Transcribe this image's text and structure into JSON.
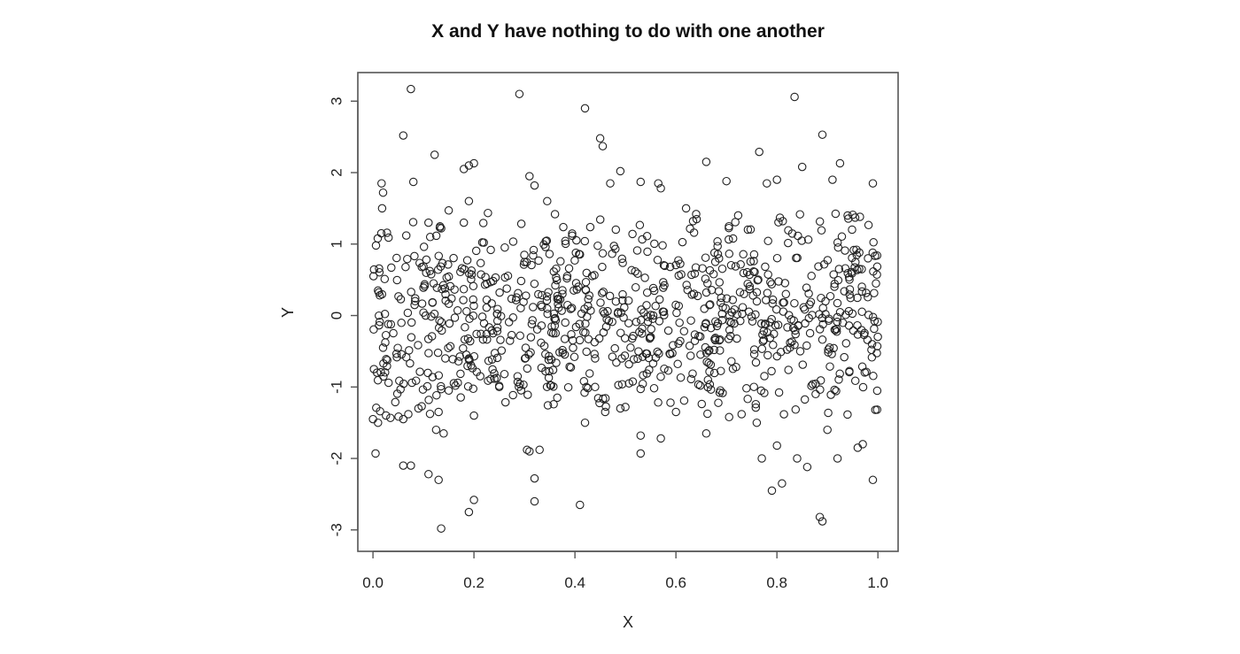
{
  "chart_data": {
    "type": "scatter",
    "title": "X and Y have nothing to do with one another",
    "xlabel": "X",
    "ylabel": "Y",
    "xlim": [
      -0.03,
      1.04
    ],
    "ylim": [
      -3.3,
      3.4
    ],
    "xticks": [
      0.0,
      0.2,
      0.4,
      0.6,
      0.8,
      1.0
    ],
    "xtick_labels": [
      "0.0",
      "0.2",
      "0.4",
      "0.6",
      "0.8",
      "1.0"
    ],
    "yticks": [
      -3,
      -2,
      -1,
      0,
      1,
      2,
      3
    ],
    "ytick_labels": [
      "-3",
      "-2",
      "-1",
      "0",
      "1",
      "2",
      "3"
    ],
    "marker": "open-circle",
    "grid": false,
    "legend": "none",
    "point_count": 1000,
    "x": [
      0.001,
      0.01,
      0.002,
      0.008,
      0.01,
      0.02,
      0.017,
      0.02,
      0.018,
      0.06,
      0.075,
      0.08,
      0.122,
      0.11,
      0.135,
      0.15,
      0.18,
      0.19,
      0.2,
      0.19,
      0.29,
      0.31,
      0.32,
      0.345,
      0.42,
      0.45,
      0.455,
      0.47,
      0.49,
      0.53,
      0.565,
      0.57,
      0.62,
      0.64,
      0.66,
      0.7,
      0.765,
      0.78,
      0.8,
      0.835,
      0.85,
      0.89,
      0.91,
      0.925,
      0.94,
      0.955,
      0.99,
      0.0,
      0.005,
      0.06,
      0.07,
      0.09,
      0.13,
      0.14,
      0.135,
      0.15,
      0.2,
      0.135,
      0.125,
      0.32,
      0.32,
      0.41,
      0.46,
      0.53,
      0.57,
      0.77,
      0.8,
      0.84,
      0.885,
      0.89,
      0.92,
      0.97,
      0.99,
      0.06,
      0.075,
      0.11,
      0.13,
      0.19,
      0.2,
      0.305,
      0.31,
      0.33,
      0.42,
      0.49,
      0.5,
      0.53,
      0.6,
      0.66,
      0.73,
      0.76,
      0.79,
      0.81,
      0.86,
      0.9,
      0.96,
      0.995,
      0.18,
      0.185,
      0.19,
      0.44,
      0.44,
      0.555,
      0.55
    ],
    "y": [
      0.55,
      0.35,
      -0.75,
      -0.8,
      -1.5,
      -0.45,
      1.85,
      1.72,
      1.5,
      2.52,
      3.17,
      1.87,
      2.25,
      1.3,
      1.22,
      1.47,
      2.05,
      2.1,
      2.13,
      1.6,
      3.1,
      1.95,
      1.82,
      1.6,
      2.9,
      2.48,
      2.37,
      1.85,
      2.02,
      1.87,
      1.85,
      1.78,
      1.5,
      1.42,
      2.15,
      1.88,
      2.29,
      1.85,
      1.9,
      3.06,
      2.08,
      2.53,
      1.9,
      2.13,
      1.4,
      1.37,
      1.85,
      -1.45,
      -1.93,
      -1.45,
      -1.38,
      -1.3,
      -1.35,
      -1.65,
      -1.03,
      -1.05,
      -1.4,
      -2.98,
      -1.6,
      -2.28,
      -2.6,
      -2.65,
      -1.35,
      -1.68,
      -1.72,
      -2.0,
      -1.82,
      -2.0,
      -2.82,
      -2.88,
      -2.0,
      -1.8,
      -2.3,
      -2.1,
      -2.1,
      -2.22,
      -2.3,
      -2.75,
      -2.58,
      -1.88,
      -1.9,
      -1.88,
      -1.5,
      -1.3,
      -1.28,
      -1.93,
      -1.35,
      -1.65,
      -1.38,
      -1.5,
      -2.45,
      -2.35,
      -2.12,
      -1.6,
      -1.85,
      -1.32,
      1.3,
      -0.55,
      -0.6,
      -0.6,
      -1.0,
      0.0,
      -0.3
    ]
  }
}
